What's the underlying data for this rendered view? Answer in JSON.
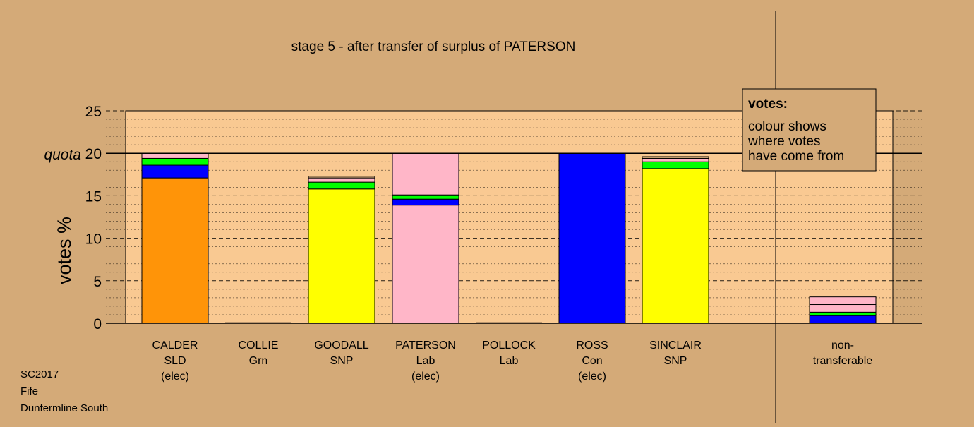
{
  "chart_data": {
    "type": "bar",
    "stacked": true,
    "title": "stage 5 - after transfer of surplus of PATERSON",
    "ylabel": "votes %",
    "xlabel": "",
    "ylim": [
      0,
      25
    ],
    "yticks": [
      0,
      5,
      10,
      15,
      20,
      25
    ],
    "quota": 20,
    "quota_label": "quota",
    "grid": true,
    "candidates": [
      {
        "name": "CALDER",
        "party": "SLD",
        "status": "(elec)",
        "segments": [
          {
            "colour": "#ff9408",
            "value": 17.1
          },
          {
            "colour": "#0000ff",
            "value": 1.5
          },
          {
            "colour": "#00ff00",
            "value": 0.8
          },
          {
            "colour": "#ffb6c8",
            "value": 0.6
          }
        ]
      },
      {
        "name": "COLLIE",
        "party": "Grn",
        "status": "",
        "segments": []
      },
      {
        "name": "GOODALL",
        "party": "SNP",
        "status": "",
        "segments": [
          {
            "colour": "#ffff00",
            "value": 15.8
          },
          {
            "colour": "#00ff00",
            "value": 0.8
          },
          {
            "colour": "#ffb6c8",
            "value": 0.5
          },
          {
            "colour": "#d4aa78",
            "value": 0.2
          }
        ]
      },
      {
        "name": "PATERSON",
        "party": "Lab",
        "status": "(elec)",
        "segments": [
          {
            "colour": "#ffb6c8",
            "value": 13.9
          },
          {
            "colour": "#0000ff",
            "value": 0.7
          },
          {
            "colour": "#00ff00",
            "value": 0.5
          },
          {
            "colour": "#ffb6c8",
            "value": 4.9
          }
        ]
      },
      {
        "name": "POLLOCK",
        "party": "Lab",
        "status": "",
        "segments": []
      },
      {
        "name": "ROSS",
        "party": "Con",
        "status": "(elec)",
        "segments": [
          {
            "colour": "#0000ff",
            "value": 20.0
          }
        ]
      },
      {
        "name": "SINCLAIR",
        "party": "SNP",
        "status": "",
        "segments": [
          {
            "colour": "#ffff00",
            "value": 18.2
          },
          {
            "colour": "#00ff00",
            "value": 0.8
          },
          {
            "colour": "#ffb6c8",
            "value": 0.4
          },
          {
            "colour": "#d4aa78",
            "value": 0.2
          }
        ]
      }
    ],
    "nontransferable": {
      "label_lines": [
        "non-",
        "transferable"
      ],
      "segments": [
        {
          "colour": "#0000ff",
          "value": 0.9
        },
        {
          "colour": "#00ff00",
          "value": 0.4
        },
        {
          "colour": "#ffb6c8",
          "value": 0.9
        },
        {
          "colour": "#ffb6c8",
          "value": 0.9
        }
      ]
    },
    "legend": {
      "position": "top-right",
      "heading": "votes:",
      "lines": [
        "colour shows",
        "where votes",
        "have come from"
      ]
    }
  },
  "footer": {
    "election": "SC2017",
    "council": "Fife",
    "ward": "Dunfermline South"
  }
}
